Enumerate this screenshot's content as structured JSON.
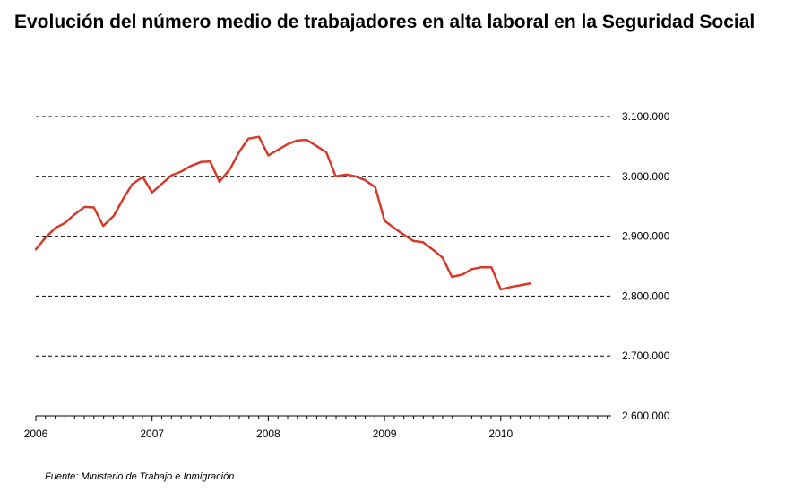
{
  "title": "Evolución del número medio de trabajadores en alta laboral en la Seguridad Social",
  "source": "Fuente: Ministerio de Trabajo e Inmigración",
  "colors": {
    "line": "#d63a2a",
    "grid": "#000000",
    "axis": "#000000"
  },
  "chart_data": {
    "type": "line",
    "title": "Evolución del número medio de trabajadores en alta laboral en la Seguridad Social",
    "xlabel": "",
    "ylabel": "",
    "x_tick_labels": [
      "2006",
      "2007",
      "2008",
      "2009",
      "2010"
    ],
    "y_tick_labels": [
      "3.100.000",
      "3.000.000",
      "2.900.000",
      "2.800.000",
      "2.700.000",
      "2.600.000"
    ],
    "xlim": [
      2006.0,
      2010.95
    ],
    "ylim": [
      2600000,
      3100000
    ],
    "grid": "horizontal dashed",
    "legend": "none",
    "series": [
      {
        "x": [
          2006.0,
          2006.08,
          2006.17,
          2006.25,
          2006.33,
          2006.42,
          2006.5,
          2006.58,
          2006.67,
          2006.75,
          2006.83,
          2006.92,
          2007.0,
          2007.08,
          2007.17,
          2007.25,
          2007.33,
          2007.42,
          2007.5,
          2007.58,
          2007.67,
          2007.75,
          2007.83,
          2007.92,
          2008.0,
          2008.08,
          2008.17,
          2008.25,
          2008.33,
          2008.42,
          2008.5,
          2008.58,
          2008.67,
          2008.75,
          2008.83,
          2008.92,
          2009.0,
          2009.08,
          2009.17,
          2009.25,
          2009.33,
          2009.42,
          2009.5,
          2009.58,
          2009.67,
          2009.75,
          2009.83,
          2009.92,
          2010.0,
          2010.08,
          2010.17,
          2010.25
        ],
        "values": [
          2878000,
          2897000,
          2914000,
          2922000,
          2936000,
          2949000,
          2948000,
          2917000,
          2934000,
          2962000,
          2987000,
          2999000,
          2973000,
          2987000,
          3002000,
          3008000,
          3017000,
          3024000,
          3025000,
          2991000,
          3012000,
          3041000,
          3063000,
          3066000,
          3035000,
          3044000,
          3054000,
          3060000,
          3061000,
          3050000,
          3040000,
          3000000,
          3003000,
          3000000,
          2994000,
          2982000,
          2926000,
          2914000,
          2902000,
          2892000,
          2890000,
          2877000,
          2864000,
          2832000,
          2836000,
          2845000,
          2848000,
          2848000,
          2811000,
          2815000,
          2818000,
          2821000
        ]
      }
    ]
  }
}
